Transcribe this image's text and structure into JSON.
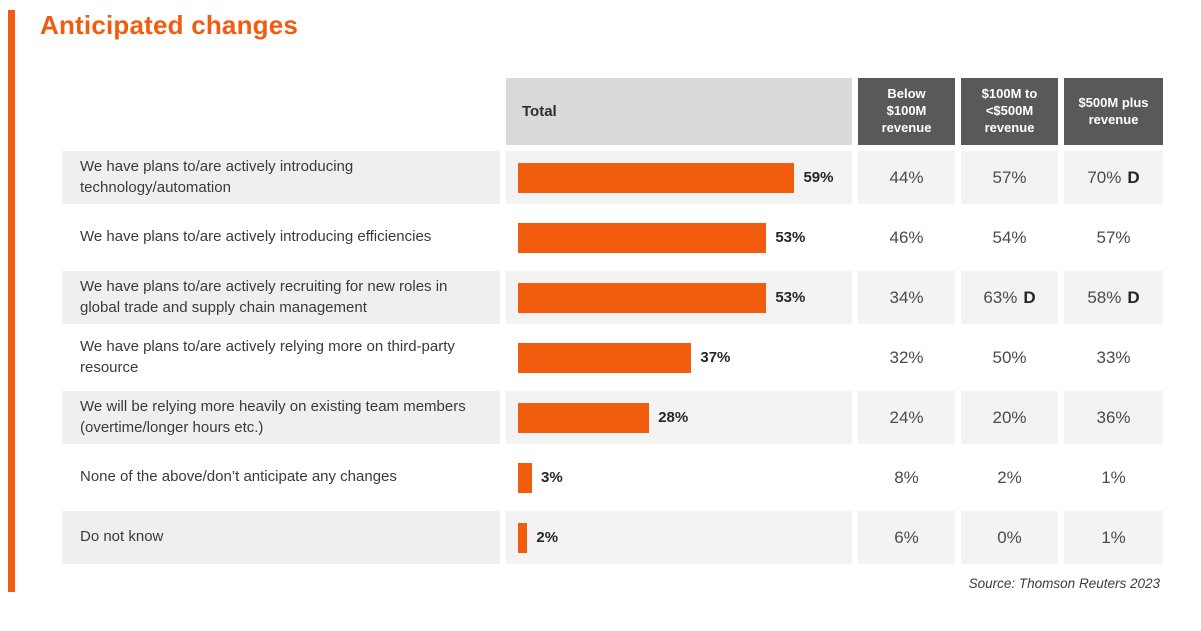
{
  "title": "Anticipated changes",
  "source": "Source: Thomson Reuters 2023",
  "colors": {
    "accent_orange": "#F25C0F",
    "header_dark_gray": "#595959",
    "header_light_gray": "#D9D9D9",
    "row_stripe_gray": "#EFEFEF",
    "text_dark": "#3a3a3a"
  },
  "table": {
    "header": {
      "total": "Total",
      "columns": [
        "Below $100M revenue",
        "$100M to <$500M revenue",
        "$500M plus revenue"
      ]
    },
    "rows": [
      {
        "label": "We have plans to/are actively introducing technology/automation",
        "total_label": "59%",
        "values": [
          "44%",
          "57%",
          "70%"
        ],
        "flags": [
          "",
          "",
          "D"
        ]
      },
      {
        "label": "We have plans to/are actively introducing efficiencies",
        "total_label": "53%",
        "values": [
          "46%",
          "54%",
          "57%"
        ],
        "flags": [
          "",
          "",
          ""
        ]
      },
      {
        "label": "We have plans to/are actively recruiting for new roles in global trade and supply chain management",
        "total_label": "53%",
        "values": [
          "34%",
          "63%",
          "58%"
        ],
        "flags": [
          "",
          "D",
          "D"
        ]
      },
      {
        "label": "We have plans to/are actively relying more on third-party resource",
        "total_label": "37%",
        "values": [
          "32%",
          "50%",
          "33%"
        ],
        "flags": [
          "",
          "",
          ""
        ]
      },
      {
        "label": "We will be relying more heavily on existing team members (overtime/longer hours etc.)",
        "total_label": "28%",
        "values": [
          "24%",
          "20%",
          "36%"
        ],
        "flags": [
          "",
          "",
          ""
        ]
      },
      {
        "label": "None of the above/don’t anticipate any changes",
        "total_label": "3%",
        "values": [
          "8%",
          "2%",
          "1%"
        ],
        "flags": [
          "",
          "",
          ""
        ]
      },
      {
        "label": "Do not know",
        "total_label": "2%",
        "values": [
          "6%",
          "0%",
          "1%"
        ],
        "flags": [
          "",
          "",
          ""
        ]
      }
    ]
  },
  "chart_data": {
    "type": "bar",
    "orientation": "horizontal",
    "title": "Anticipated changes",
    "xlabel": "",
    "ylabel": "",
    "unit": "%",
    "xlim": [
      0,
      70
    ],
    "grid": false,
    "legend_position": "none",
    "categories": [
      "We have plans to/are actively introducing technology/automation",
      "We have plans to/are actively introducing efficiencies",
      "We have plans to/are actively recruiting for new roles in global trade and supply chain management",
      "We have plans to/are actively relying more on third-party resource",
      "We will be relying more heavily on existing team members (overtime/longer hours etc.)",
      "None of the above/don’t anticipate any changes",
      "Do not know"
    ],
    "series": [
      {
        "name": "Total",
        "values": [
          59,
          53,
          53,
          37,
          28,
          3,
          2
        ],
        "display": "bar"
      },
      {
        "name": "Below $100M revenue",
        "values": [
          44,
          46,
          34,
          32,
          24,
          8,
          6
        ],
        "display": "column-text"
      },
      {
        "name": "$100M to <$500M revenue",
        "values": [
          57,
          54,
          63,
          50,
          20,
          2,
          0
        ],
        "display": "column-text"
      },
      {
        "name": "$500M plus revenue",
        "values": [
          70,
          57,
          58,
          33,
          36,
          1,
          1
        ],
        "display": "column-text"
      }
    ],
    "annotations": "Bold D marks significantly higher values: 70% ($500M plus, row 1), 63% and 58% (row 3)"
  }
}
